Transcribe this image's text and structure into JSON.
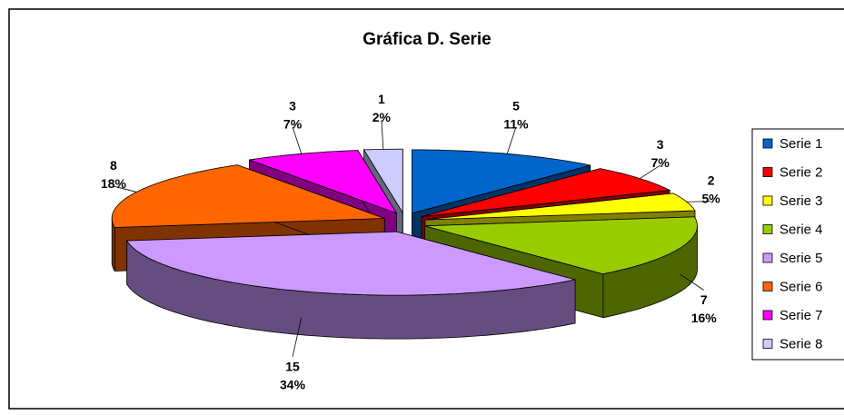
{
  "chart_data": {
    "type": "pie3d",
    "title": "Gráfica D. Serie",
    "categories": [
      "Serie 1",
      "Serie 2",
      "Serie 3",
      "Serie 4",
      "Serie 5",
      "Serie 6",
      "Serie 7",
      "Serie 8"
    ],
    "values": [
      5,
      3,
      2,
      7,
      15,
      8,
      3,
      1
    ],
    "percent_labels": [
      "11%",
      "7%",
      "5%",
      "16%",
      "34%",
      "18%",
      "7%",
      "2%"
    ],
    "colors": [
      "#0066cc",
      "#ff0000",
      "#ffff00",
      "#99cc00",
      "#cc99ff",
      "#ff6600",
      "#ff00ff",
      "#ccccff"
    ],
    "legend": "right"
  }
}
